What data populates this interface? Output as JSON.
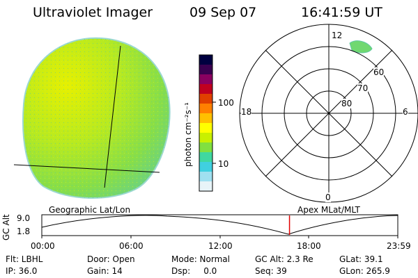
{
  "header": {
    "title": "Ultraviolet Imager",
    "date": "09 Sep 07",
    "time": "16:41:59 UT"
  },
  "colorbar": {
    "unit_label": "photon cm⁻²s⁻¹",
    "ticks": [
      "100",
      "10"
    ],
    "colors": [
      "#000040",
      "#3a0050",
      "#8a0060",
      "#c00020",
      "#e04000",
      "#ff8000",
      "#ffc000",
      "#ffff00",
      "#c8f000",
      "#80e040",
      "#40d8a0",
      "#40d0e0",
      "#a0e0f0",
      "#e8f4f8"
    ]
  },
  "polar_plot": {
    "mlt_labels": {
      "top": "12",
      "bottom": "0",
      "left": "18",
      "right": "6"
    },
    "lat_labels": [
      "60",
      "70",
      "80"
    ]
  },
  "timeline": {
    "left_label": "Geographic Lat/Lon",
    "right_label": "Apex  MLat/MLT",
    "y_axis_label": "GC Alt",
    "y_ticks": [
      "9.0",
      "1.8"
    ],
    "x_ticks": [
      "00:00",
      "06:00",
      "12:00",
      "18:00",
      "23:59"
    ],
    "current_time_fraction": 0.6958
  },
  "status": {
    "row1": [
      {
        "key": "flt",
        "text": "Flt: LBHL"
      },
      {
        "key": "door",
        "text": "Door: Open"
      },
      {
        "key": "mode",
        "text": "Mode: Normal"
      },
      {
        "key": "gcalt",
        "text": "GC Alt: 2.3 Re"
      },
      {
        "key": "glat",
        "text": "GLat:  39.1"
      }
    ],
    "row2": [
      {
        "key": "ip",
        "text": "IP: 36.0"
      },
      {
        "key": "gain",
        "text": "Gain: 14"
      },
      {
        "key": "dsp",
        "text": "Dsp:     0.0"
      },
      {
        "key": "seq",
        "text": "Seq: 39"
      },
      {
        "key": "glon",
        "text": "GLon: 265.9"
      }
    ]
  }
}
